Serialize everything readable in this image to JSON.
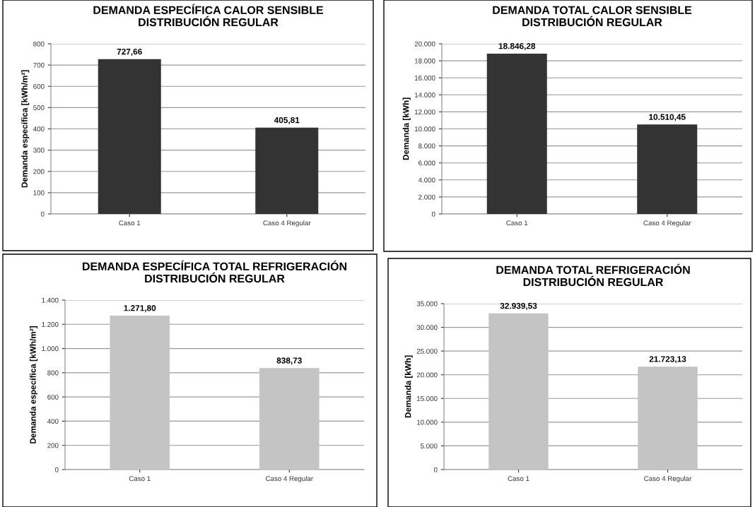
{
  "chart_data": [
    {
      "type": "bar",
      "title": "DEMANDA ESPECÍFICA CALOR SENSIBLE\nDISTRIBUCIÓN REGULAR",
      "ylabel": "Demanda específica [kWh/m²]",
      "categories": [
        "Caso 1",
        "Caso 4 Regular"
      ],
      "values": [
        727.66,
        405.81
      ],
      "value_labels": [
        "727,66",
        "405,81"
      ],
      "color": "#333333",
      "ylim": [
        0,
        800
      ],
      "yticks": [
        0,
        100,
        200,
        300,
        400,
        500,
        600,
        700,
        800
      ],
      "grid": "y",
      "legend": false
    },
    {
      "type": "bar",
      "title": "DEMANDA TOTAL CALOR SENSIBLE\nDISTRIBUCIÓN REGULAR",
      "ylabel": "Demanda [kWh]",
      "categories": [
        "Caso 1",
        "Caso 4 Regular"
      ],
      "values": [
        18846.28,
        10510.45
      ],
      "value_labels": [
        "18.846,28",
        "10.510,45"
      ],
      "color": "#333333",
      "ylim": [
        0,
        20000
      ],
      "yticks": [
        0,
        {
          "value": 2000,
          "label": "2.000"
        },
        {
          "value": 4000,
          "label": "4.000"
        },
        {
          "value": 6000,
          "label": "6.000"
        },
        {
          "value": 8000,
          "label": "8.000"
        },
        {
          "value": 10000,
          "label": "10.000"
        },
        {
          "value": 12000,
          "label": "12.000"
        },
        {
          "value": 14000,
          "label": "14.000"
        },
        {
          "value": 16000,
          "label": "16.000"
        },
        {
          "value": 18000,
          "label": "18.000"
        },
        {
          "value": 20000,
          "label": "20.000"
        }
      ],
      "grid": "y",
      "legend": false
    },
    {
      "type": "bar",
      "title": "DEMANDA ESPECÍFICA TOTAL REFRIGERACIÓN\nDISTRIBUCIÓN REGULAR",
      "ylabel": "Demanda específica [kWh/m²]",
      "categories": [
        "Caso 1",
        "Caso 4 Regular"
      ],
      "values": [
        1271.8,
        838.73
      ],
      "value_labels": [
        "1.271,80",
        "838,73"
      ],
      "color": "#c4c4c4",
      "ylim": [
        0,
        1400
      ],
      "yticks": [
        0,
        200,
        400,
        600,
        800,
        {
          "value": 1000,
          "label": "1.000"
        },
        {
          "value": 1200,
          "label": "1.200"
        },
        {
          "value": 1400,
          "label": "1.400"
        }
      ],
      "grid": "y",
      "legend": false
    },
    {
      "type": "bar",
      "title": "DEMANDA TOTAL REFRIGERACIÓN\nDISTRIBUCIÓN REGULAR",
      "ylabel": "Demanda [kWh]",
      "categories": [
        "Caso 1",
        "Caso 4 Regular"
      ],
      "values": [
        32939.53,
        21723.13
      ],
      "value_labels": [
        "32.939,53",
        "21.723,13"
      ],
      "color": "#c4c4c4",
      "ylim": [
        0,
        35000
      ],
      "yticks": [
        0,
        {
          "value": 5000,
          "label": "5.000"
        },
        {
          "value": 10000,
          "label": "10.000"
        },
        {
          "value": 15000,
          "label": "15.000"
        },
        {
          "value": 20000,
          "label": "20.000"
        },
        {
          "value": 25000,
          "label": "25.000"
        },
        {
          "value": 30000,
          "label": "30.000"
        },
        {
          "value": 35000,
          "label": "35.000"
        }
      ],
      "grid": "y",
      "legend": false
    }
  ]
}
